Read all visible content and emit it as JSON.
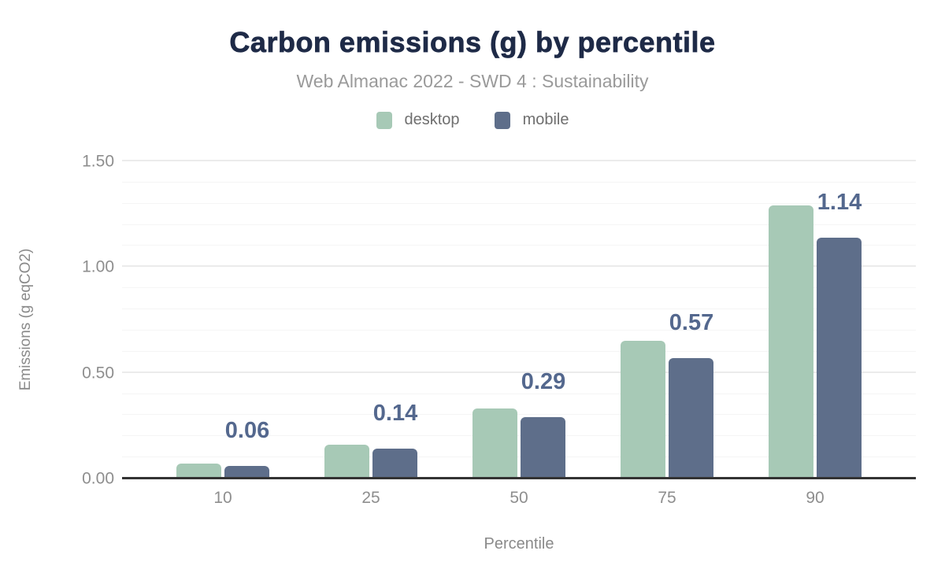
{
  "chart": {
    "title": "Carbon emissions (g) by percentile",
    "subtitle": "Web Almanac 2022 - SWD 4 : Sustainability",
    "y_axis_title": "Emissions (g eqCO2)",
    "x_axis_title": "Percentile"
  },
  "legend": {
    "items": [
      {
        "name": "desktop",
        "label": "desktop",
        "color": "#a7c9b6"
      },
      {
        "name": "mobile",
        "label": "mobile",
        "color": "#5e6e8a"
      }
    ]
  },
  "chart_data": {
    "type": "bar",
    "title": "Carbon emissions (g) by percentile",
    "subtitle": "Web Almanac 2022 - SWD 4 : Sustainability",
    "xlabel": "Percentile",
    "ylabel": "Emissions (g eqCO2)",
    "categories": [
      "10",
      "25",
      "50",
      "75",
      "90"
    ],
    "series": [
      {
        "name": "desktop",
        "color": "#a7c9b6",
        "values": [
          0.07,
          0.16,
          0.33,
          0.65,
          1.29
        ]
      },
      {
        "name": "mobile",
        "color": "#5e6e8a",
        "values": [
          0.06,
          0.14,
          0.29,
          0.57,
          1.14
        ],
        "data_labels": [
          "0.06",
          "0.14",
          "0.29",
          "0.57",
          "1.14"
        ]
      }
    ],
    "data_label_series": "mobile",
    "ylim": [
      0,
      1.5
    ],
    "y_major_ticks": [
      {
        "value": 0.0,
        "label": "0.00"
      },
      {
        "value": 0.5,
        "label": "0.50"
      },
      {
        "value": 1.0,
        "label": "1.00"
      },
      {
        "value": 1.5,
        "label": "1.50"
      }
    ],
    "y_minor_step": 0.1,
    "grid": "horizontal",
    "legend_position": "top"
  },
  "colors": {
    "title": "#1e2a47",
    "subtitle": "#9a9a9a",
    "axis_text": "#8e8e8e",
    "legend_text": "#6f6f6f",
    "data_label": "#54688e",
    "baseline": "#333333",
    "gridline_major": "#ebebeb",
    "gridline_minor": "#f5f5f5",
    "background": "#ffffff"
  }
}
